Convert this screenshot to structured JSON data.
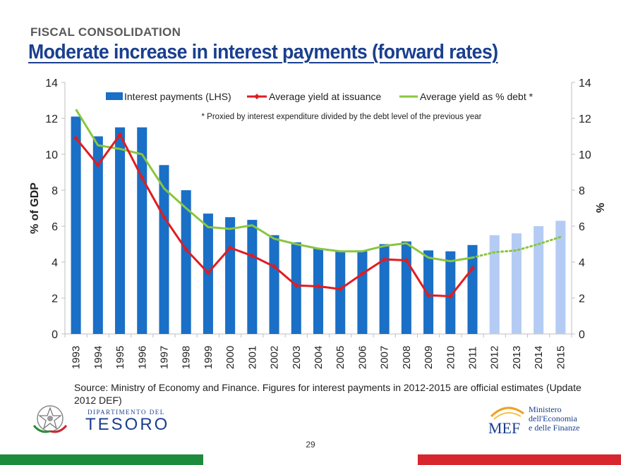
{
  "header": {
    "section": "FISCAL CONSOLIDATION",
    "title": "Moderate increase in interest payments (forward rates)"
  },
  "chart_data": {
    "type": "bar",
    "categories": [
      "1993",
      "1994",
      "1995",
      "1996",
      "1997",
      "1998",
      "1999",
      "2000",
      "2001",
      "2002",
      "2003",
      "2004",
      "2005",
      "2006",
      "2007",
      "2008",
      "2009",
      "2010",
      "2011",
      "2012",
      "2013",
      "2014",
      "2015"
    ],
    "ylabel_left": "% of GDP",
    "ylabel_right": "%",
    "ylim": [
      0,
      14
    ],
    "yticks": [
      0,
      2,
      4,
      6,
      8,
      10,
      12,
      14
    ],
    "legend_position": "top",
    "note": "* Proxied by interest expenditure divided by the debt level of the previous year",
    "series": [
      {
        "name": "Interest payments (LHS)",
        "type": "bar",
        "color": "#1a6fc6",
        "estimate_color": "#b4ccf4",
        "estimate_from": "2012",
        "values": [
          12.1,
          11.0,
          11.5,
          11.5,
          9.4,
          8.0,
          6.7,
          6.5,
          6.35,
          5.5,
          5.1,
          4.75,
          4.6,
          4.65,
          5.0,
          5.15,
          4.65,
          4.6,
          4.95,
          5.5,
          5.6,
          6.0,
          6.3
        ]
      },
      {
        "name": "Average yield at issuance",
        "type": "line",
        "color": "#e01c22",
        "values": [
          10.9,
          9.4,
          11.1,
          8.7,
          6.5,
          4.7,
          3.4,
          4.8,
          4.35,
          3.75,
          2.7,
          2.65,
          2.5,
          3.35,
          4.15,
          4.1,
          2.15,
          2.1,
          3.65,
          null,
          null,
          null,
          null
        ]
      },
      {
        "name": "Average yield as % debt *",
        "type": "line",
        "color": "#8ac53f",
        "dashed_from": "2011",
        "values": [
          12.5,
          10.5,
          10.3,
          10.0,
          8.1,
          7.0,
          5.95,
          5.85,
          6.05,
          5.3,
          5.0,
          4.75,
          4.6,
          4.6,
          4.9,
          5.05,
          4.25,
          4.05,
          4.25,
          4.55,
          4.65,
          5.0,
          5.4
        ]
      }
    ]
  },
  "footer": {
    "source": "Source: Ministry of Economy and Finance. Figures for interest payments in 2012-2015 are official estimates (Update 2012 DEF)",
    "tesoro_dept": "DIPARTIMENTO DEL",
    "tesoro_name": "TESORO",
    "mef_abbr": "MEF",
    "mef_line1": "Ministero",
    "mef_line2": "dell'Economia",
    "mef_line3": "e delle Finanze",
    "page_number": "29"
  }
}
